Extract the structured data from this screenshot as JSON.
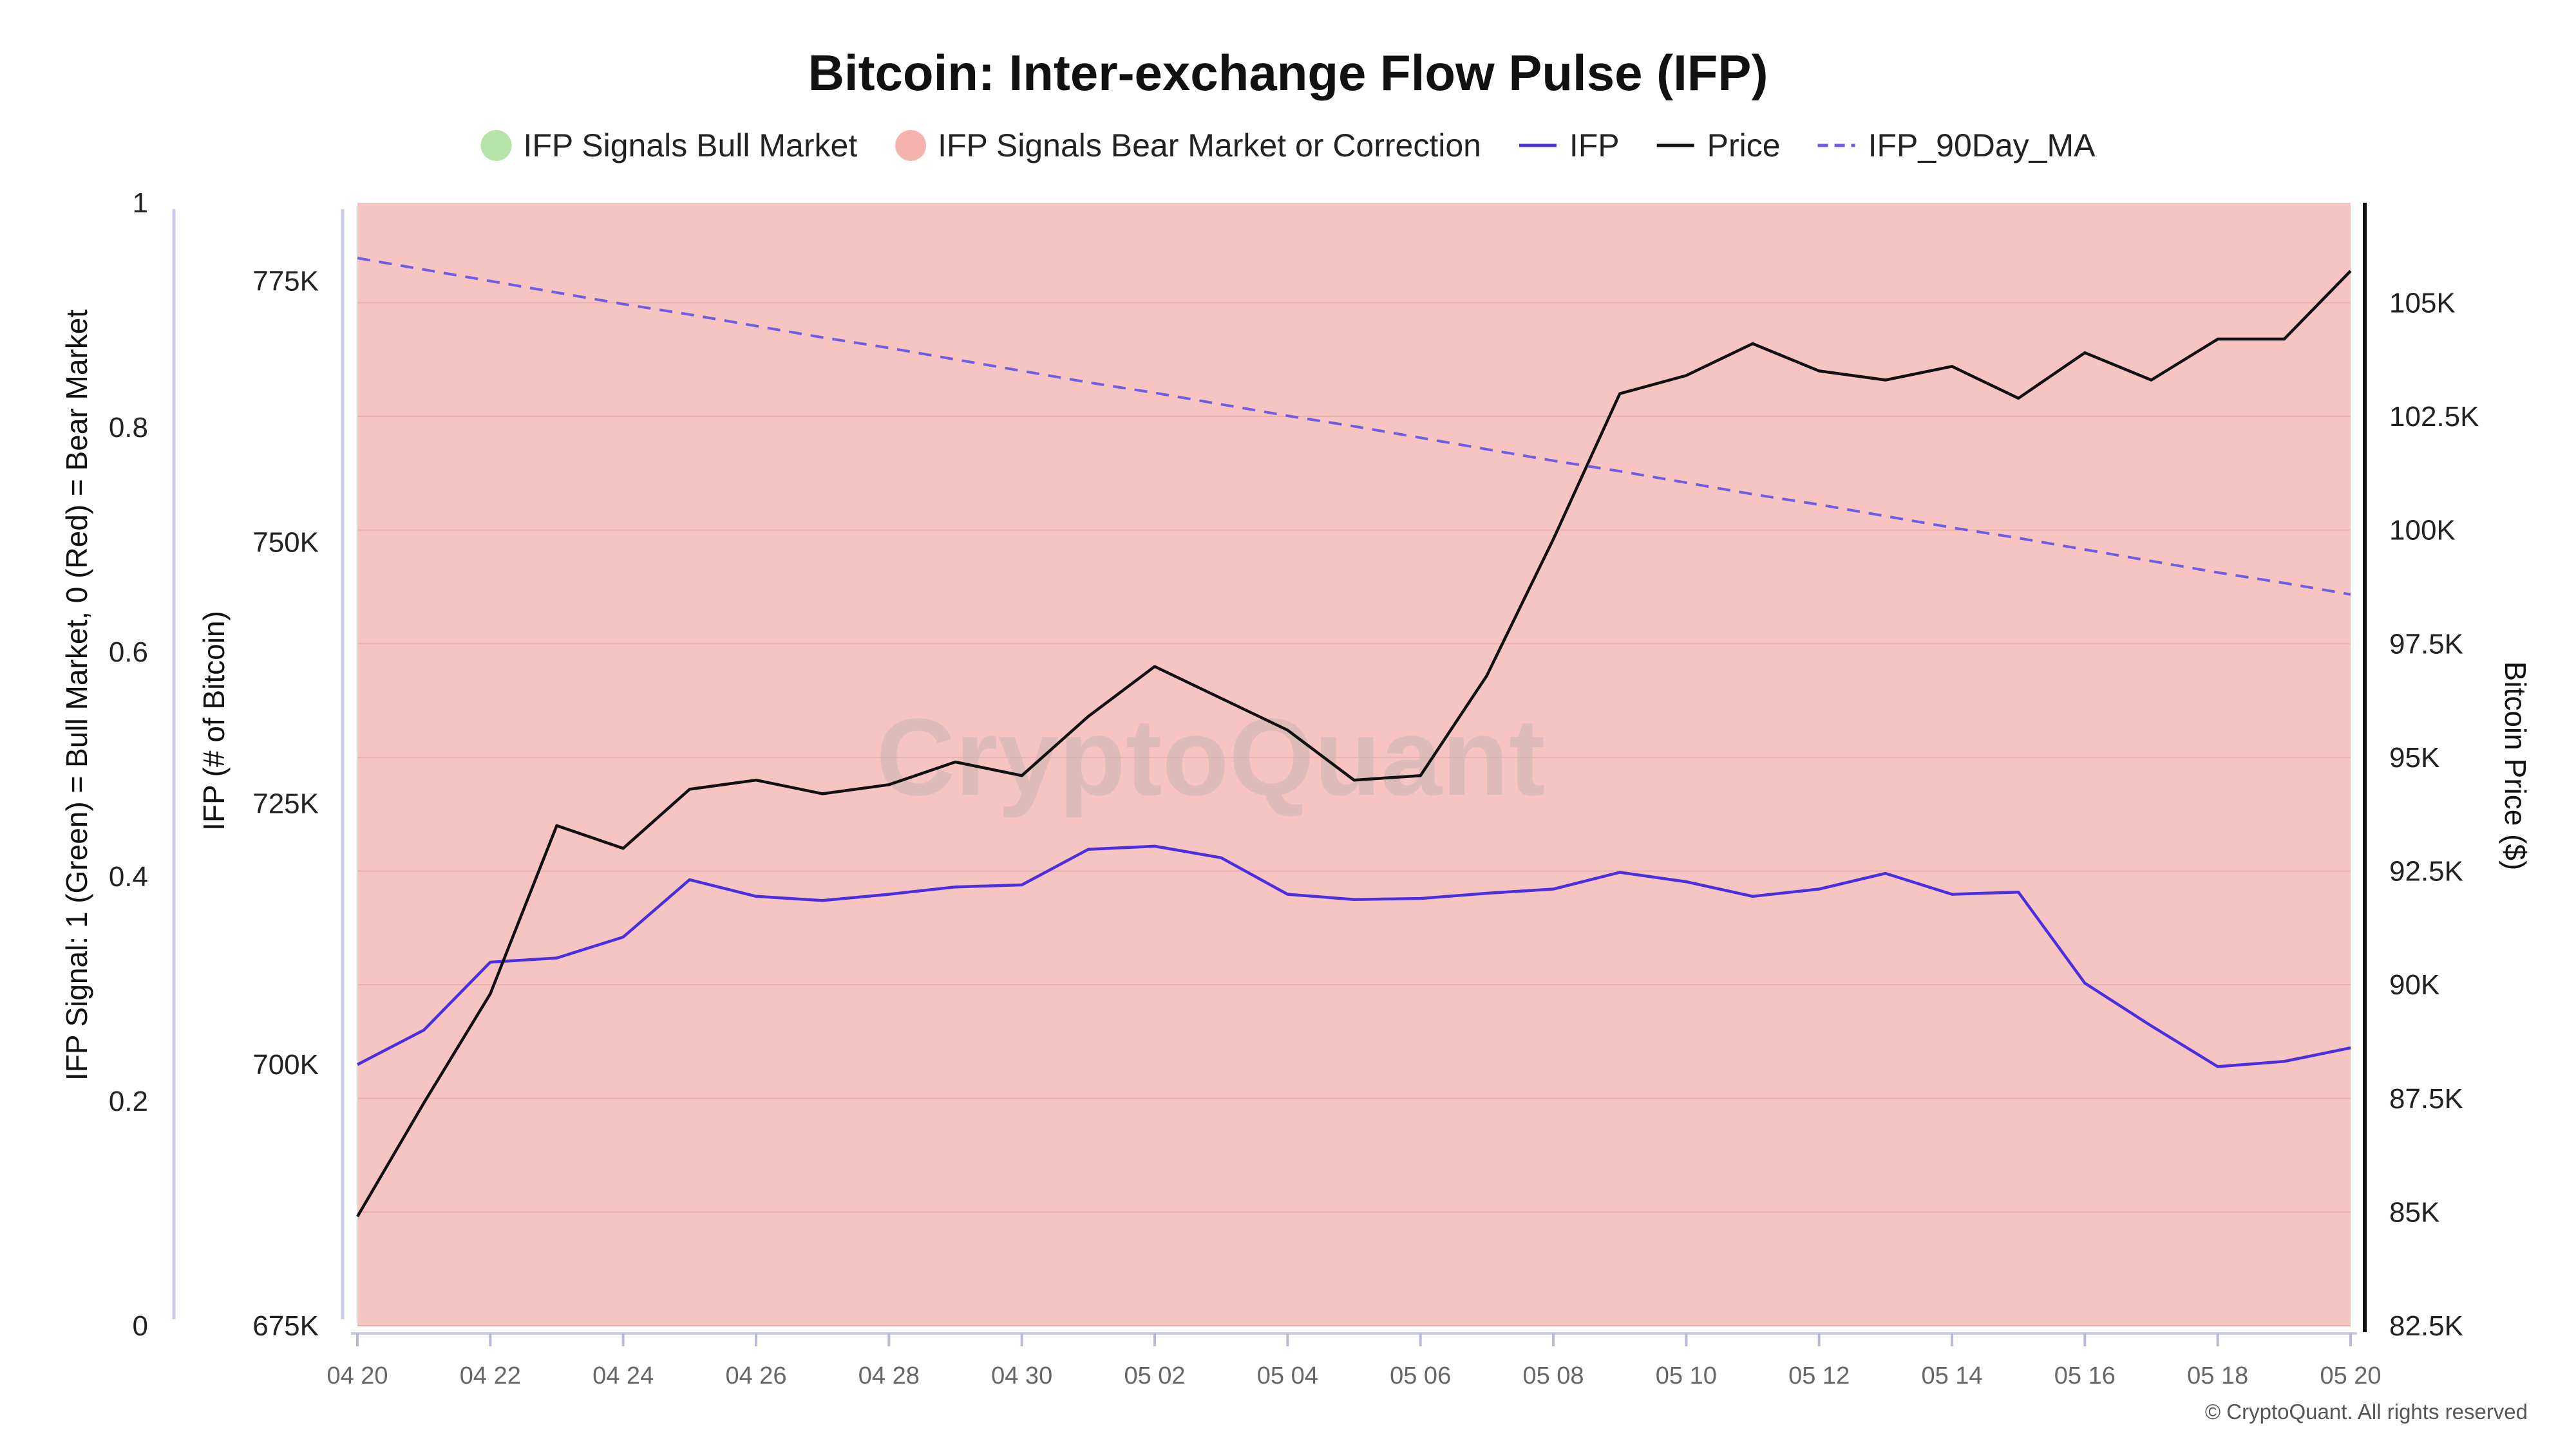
{
  "chart_data": {
    "type": "line",
    "title": "Bitcoin: Inter-exchange Flow Pulse (IFP)",
    "watermark": "CryptoQuant",
    "copyright": "© CryptoQuant. All rights reserved",
    "legend": {
      "placement": "top-center",
      "items": [
        {
          "label": "IFP Signals Bull Market",
          "kind": "dot",
          "color": "#b6e3a8"
        },
        {
          "label": "IFP Signals Bear Market or Correction",
          "kind": "dot",
          "color": "#f4b3ad"
        },
        {
          "label": "IFP",
          "kind": "line",
          "color": "#4a2fe0"
        },
        {
          "label": "Price",
          "kind": "line",
          "color": "#111111"
        },
        {
          "label": "IFP_90Day_MA",
          "kind": "dashed",
          "color": "#6e5ce6"
        }
      ]
    },
    "x": [
      "04 20",
      "04 21",
      "04 22",
      "04 23",
      "04 24",
      "04 25",
      "04 26",
      "04 27",
      "04 28",
      "04 29",
      "04 30",
      "05 01",
      "05 02",
      "05 03",
      "05 04",
      "05 05",
      "05 06",
      "05 07",
      "05 08",
      "05 09",
      "05 10",
      "05 11",
      "05 12",
      "05 13",
      "05 14",
      "05 15",
      "05 16",
      "05 17",
      "05 18",
      "05 19",
      "05 20"
    ],
    "x_tick_labels": [
      "04 20",
      "04 22",
      "04 24",
      "04 26",
      "04 28",
      "04 30",
      "05 02",
      "05 04",
      "05 06",
      "05 08",
      "05 10",
      "05 12",
      "05 14",
      "05 16",
      "05 18",
      "05 20"
    ],
    "axes": {
      "signal": {
        "label": "IFP Signal: 1 (Green) = Bull Market, 0 (Red) = Bear Market",
        "range": [
          0,
          1
        ],
        "ticks": [
          "0",
          "0.2",
          "0.4",
          "0.6",
          "0.8",
          "1"
        ],
        "tick_values": [
          0,
          0.2,
          0.4,
          0.6,
          0.8,
          1
        ]
      },
      "ifp": {
        "label": "IFP (# of Bitcoin)",
        "range": [
          675000,
          782500
        ],
        "ticks": [
          "675K",
          "700K",
          "725K",
          "750K",
          "775K"
        ],
        "tick_values": [
          675000,
          700000,
          725000,
          750000,
          775000
        ]
      },
      "price": {
        "label": "Bitcoin Price ($)",
        "range": [
          82500,
          107200
        ],
        "ticks": [
          "82.5K",
          "85K",
          "87.5K",
          "90K",
          "92.5K",
          "95K",
          "97.5K",
          "100K",
          "102.5K",
          "105K"
        ],
        "tick_values": [
          82500,
          85000,
          87500,
          90000,
          92500,
          95000,
          97500,
          100000,
          102500,
          105000
        ]
      }
    },
    "signal_background": {
      "value": 0,
      "color": "#f6c4c1",
      "label": "IFP Signals Bear Market or Correction"
    },
    "series": [
      {
        "name": "IFP",
        "axis": "ifp",
        "style": "solid",
        "color": "#4a2fe0",
        "values": [
          700000,
          703300,
          709800,
          710200,
          712200,
          717700,
          716100,
          715700,
          716300,
          717000,
          717200,
          720600,
          720900,
          719800,
          716300,
          715800,
          715900,
          716400,
          716800,
          718400,
          717500,
          716100,
          716800,
          718300,
          716300,
          716500,
          707800,
          703700,
          699800,
          700300,
          701600
        ]
      },
      {
        "name": "Price",
        "axis": "price",
        "style": "solid",
        "color": "#111111",
        "values": [
          84900,
          87400,
          89800,
          93500,
          93000,
          94300,
          94500,
          94200,
          94400,
          94900,
          94600,
          95900,
          97000,
          96300,
          95600,
          94500,
          94600,
          96800,
          99800,
          103000,
          103400,
          104100,
          103500,
          103300,
          103600,
          102900,
          103900,
          103300,
          104200,
          104200,
          105700
        ]
      },
      {
        "name": "IFP_90Day_MA",
        "axis": "ifp",
        "style": "dashed",
        "color": "#6e5ce6",
        "values": [
          777200,
          776100,
          775000,
          773900,
          772800,
          771800,
          770700,
          769600,
          768600,
          767500,
          766400,
          765300,
          764300,
          763200,
          762100,
          761100,
          760000,
          758900,
          757800,
          756800,
          755700,
          754600,
          753600,
          752500,
          751400,
          750400,
          749300,
          748200,
          747100,
          746100,
          745000
        ]
      }
    ]
  }
}
